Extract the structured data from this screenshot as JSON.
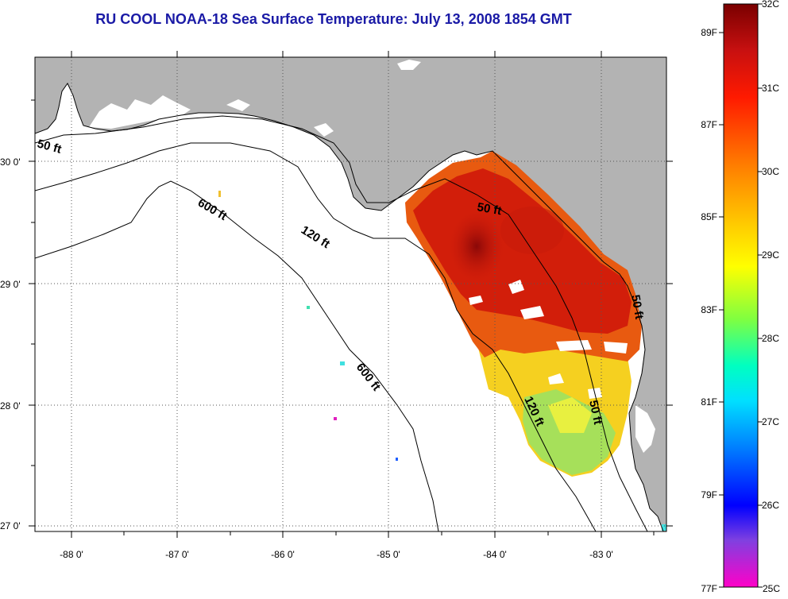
{
  "title": "RU COOL  NOAA-18  Sea Surface Temperature:  July 13, 2008 1854 GMT",
  "lon_labels": [
    "-88 0'",
    "-87 0'",
    "-86 0'",
    "-85 0'",
    "-84 0'",
    "-83 0'"
  ],
  "lat_labels": [
    "30 0'",
    "29 0'",
    "28 0'",
    "27 0'"
  ],
  "contour_labels": [
    "50 ft",
    "600 ft",
    "120 ft",
    "50 ft",
    "600 ft",
    "120 ft",
    "50 ft",
    "50 ft"
  ],
  "colorbar": {
    "celsius": [
      "32C",
      "31C",
      "30C",
      "29C",
      "28C",
      "27C",
      "26C",
      "25C"
    ],
    "fahrenheit": [
      "89F",
      "87F",
      "85F",
      "83F",
      "81F",
      "79F",
      "77F"
    ]
  },
  "colors": {
    "land": "#b3b3b3",
    "title": "#1a1aa6",
    "sst_hot": "#d21e0a",
    "sst_warm": "#e85a10",
    "sst_mid": "#f5d21e",
    "sst_cool": "#9be050"
  }
}
